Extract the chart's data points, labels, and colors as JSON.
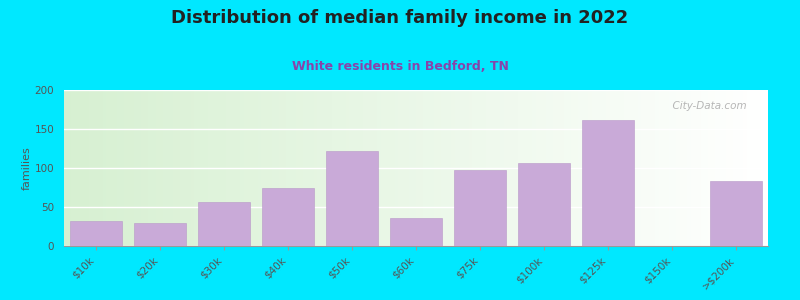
{
  "title": "Distribution of median family income in 2022",
  "subtitle": "White residents in Bedford, TN",
  "ylabel": "families",
  "categories": [
    "$10k",
    "$20k",
    "$30k",
    "$40k",
    "$50k",
    "$60k",
    "$75k",
    "$100k",
    "$125k",
    "$150k",
    ">$200k"
  ],
  "values": [
    32,
    30,
    57,
    74,
    122,
    36,
    98,
    107,
    162,
    0,
    83
  ],
  "bar_color": "#c9aad8",
  "bar_edgecolor": "#b898c8",
  "background_color": "#00e8ff",
  "title_color": "#222222",
  "subtitle_color": "#8844aa",
  "title_fontsize": 13,
  "subtitle_fontsize": 9,
  "ylabel_fontsize": 8,
  "tick_fontsize": 7.5,
  "ylim": [
    0,
    200
  ],
  "yticks": [
    0,
    50,
    100,
    150,
    200
  ],
  "watermark": "  City-Data.com"
}
